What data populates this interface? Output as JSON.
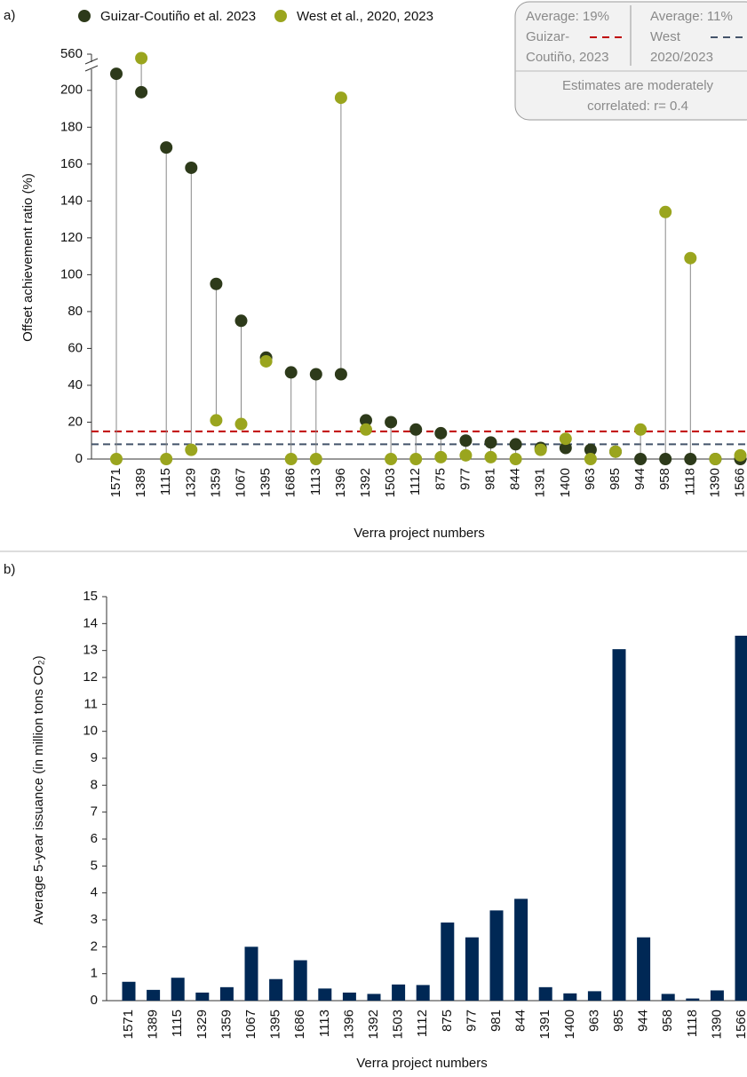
{
  "chart_data": [
    {
      "type": "lollipop",
      "panel_label": "a)",
      "categories": [
        "1571",
        "1389",
        "1115",
        "1329",
        "1359",
        "1067",
        "1395",
        "1686",
        "1113",
        "1396",
        "1392",
        "1503",
        "1112",
        "875",
        "977",
        "981",
        "844",
        "1391",
        "1400",
        "963",
        "985",
        "944",
        "958",
        "1118",
        "1390",
        "1566"
      ],
      "series": [
        {
          "name": "Guizar-Coutiño et al. 2023",
          "color": "#2d3a1a",
          "values": [
            209,
            199,
            169,
            158,
            95,
            75,
            55,
            47,
            46,
            46,
            21,
            20,
            16,
            14,
            10,
            9,
            8,
            6,
            6,
            5,
            4,
            0,
            0,
            0,
            0,
            0
          ]
        },
        {
          "name": "West et al., 2020, 2023",
          "color": "#9aa51e",
          "values": [
            0,
            555,
            0,
            5,
            21,
            19,
            53,
            0,
            0,
            196,
            16,
            0,
            0,
            1,
            2,
            1,
            0,
            5,
            11,
            0,
            4,
            16,
            134,
            109,
            0,
            2
          ]
        }
      ],
      "reference_lines": [
        {
          "value": 15,
          "color": "#c00000"
        },
        {
          "value": 8,
          "color": "#44546a"
        }
      ],
      "ylim": [
        0,
        560
      ],
      "yticks": [
        0,
        20,
        40,
        60,
        80,
        100,
        120,
        140,
        160,
        180,
        200,
        560
      ],
      "axis_break": [
        210,
        550
      ],
      "xlabel": "Verra project numbers",
      "ylabel": "Offset achievement ratio (%)",
      "info_box": {
        "left": [
          "Average: 19%",
          "Guizar-",
          "Coutiño, 2023"
        ],
        "right": [
          "Average: 11%",
          "West",
          "2020/2023"
        ],
        "note": [
          "Estimates are moderately",
          "correlated: r= 0.4"
        ]
      }
    },
    {
      "type": "bar",
      "panel_label": "b)",
      "categories": [
        "1571",
        "1389",
        "1115",
        "1329",
        "1359",
        "1067",
        "1395",
        "1686",
        "1113",
        "1396",
        "1392",
        "1503",
        "1112",
        "875",
        "977",
        "981",
        "844",
        "1391",
        "1400",
        "963",
        "985",
        "944",
        "958",
        "1118",
        "1390",
        "1566"
      ],
      "values": [
        0.7,
        0.4,
        0.85,
        0.3,
        0.5,
        2.0,
        0.8,
        1.5,
        0.45,
        0.3,
        0.25,
        0.6,
        0.58,
        2.9,
        2.35,
        3.35,
        3.78,
        0.5,
        0.27,
        0.35,
        13.05,
        2.35,
        0.25,
        0.08,
        0.38,
        13.55
      ],
      "color": "#002855",
      "ylim": [
        0,
        15
      ],
      "yticks": [
        0,
        1,
        2,
        3,
        4,
        5,
        6,
        7,
        8,
        9,
        10,
        11,
        12,
        13,
        14,
        15
      ],
      "xlabel": "Verra project numbers",
      "ylabel": "Average 5-year issuance (in million tons CO₂)"
    }
  ]
}
